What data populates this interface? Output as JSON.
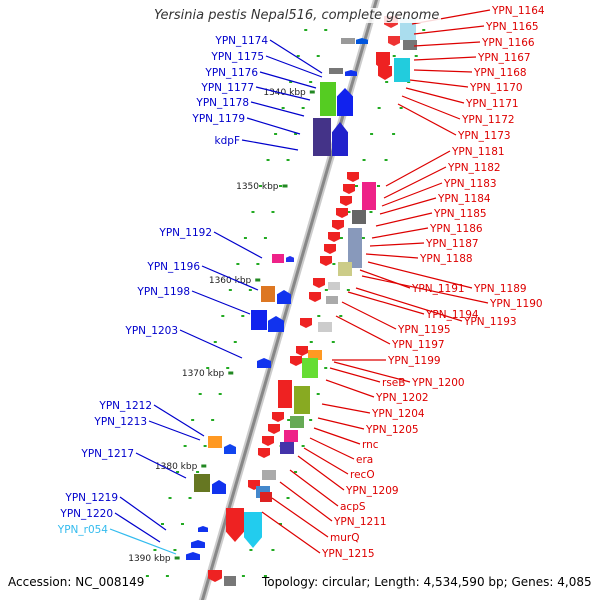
{
  "title": "Yersinia pestis Nepal516, complete genome",
  "footer": {
    "accession": "Accession: NC_008149",
    "summary": "Topology: circular; Length: 4,534,590 bp; Genes: 4,085"
  },
  "colors": {
    "backbone": "#888888",
    "left_label": "#0000cc",
    "left_label_rna": "#33bbee",
    "right_label": "#dd0000",
    "kbp_tick": "#228822"
  },
  "kbp_ticks": [
    {
      "label": "1340 kbp",
      "pos": 1340
    },
    {
      "label": "1350 kbp",
      "pos": 1350
    },
    {
      "label": "1360 kbp",
      "pos": 1360
    },
    {
      "label": "1370 kbp",
      "pos": 1370
    },
    {
      "label": "1380 kbp",
      "pos": 1380
    },
    {
      "label": "1390 kbp",
      "pos": 1390
    }
  ],
  "left_labels": [
    {
      "text": "YPN_1174",
      "kind": "gene"
    },
    {
      "text": "YPN_1175",
      "kind": "gene"
    },
    {
      "text": "YPN_1176",
      "kind": "gene"
    },
    {
      "text": "YPN_1177",
      "kind": "gene"
    },
    {
      "text": "YPN_1178",
      "kind": "gene"
    },
    {
      "text": "YPN_1179",
      "kind": "gene"
    },
    {
      "text": "kdpF",
      "kind": "gene"
    },
    {
      "text": "YPN_1192",
      "kind": "gene"
    },
    {
      "text": "YPN_1196",
      "kind": "gene"
    },
    {
      "text": "YPN_1198",
      "kind": "gene"
    },
    {
      "text": "YPN_1203",
      "kind": "gene"
    },
    {
      "text": "YPN_1212",
      "kind": "gene"
    },
    {
      "text": "YPN_1213",
      "kind": "gene"
    },
    {
      "text": "YPN_1217",
      "kind": "gene"
    },
    {
      "text": "YPN_1219",
      "kind": "gene"
    },
    {
      "text": "YPN_1220",
      "kind": "gene"
    },
    {
      "text": "YPN_r054",
      "kind": "rna"
    }
  ],
  "right_labels": [
    "YPN_1164",
    "YPN_1165",
    "YPN_1166",
    "YPN_1167",
    "YPN_1168",
    "YPN_1170",
    "YPN_1171",
    "YPN_1172",
    "YPN_1173",
    "YPN_1181",
    "YPN_1182",
    "YPN_1183",
    "YPN_1184",
    "YPN_1185",
    "YPN_1186",
    "YPN_1187",
    "YPN_1188",
    "YPN_1191",
    "YPN_1189",
    "YPN_1190",
    "YPN_1194",
    "YPN_1193",
    "YPN_1195",
    "YPN_1197",
    "YPN_1199",
    "rseB",
    "YPN_1200",
    "YPN_1202",
    "YPN_1204",
    "YPN_1205",
    "rnc",
    "era",
    "recO",
    "YPN_1209",
    "acpS",
    "YPN_1211",
    "murQ",
    "YPN_1215"
  ]
}
